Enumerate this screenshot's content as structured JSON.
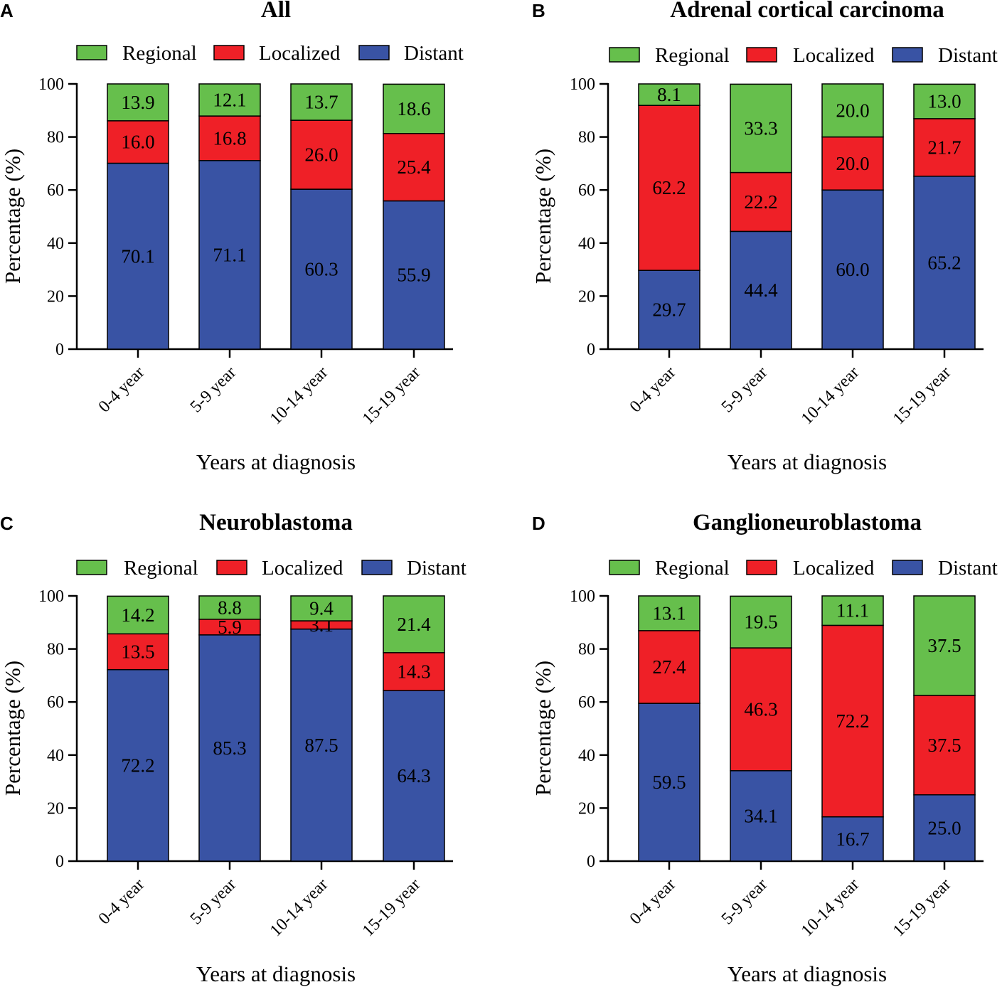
{
  "colors": {
    "Regional": "#66bf4c",
    "Localized": "#ef2027",
    "Distant": "#3953a4"
  },
  "chart_data": [
    {
      "panel": "A",
      "type": "bar",
      "stacked": true,
      "title": "All",
      "xlabel": "Years at diagnosis",
      "ylabel": "Percentage (%)",
      "ylim": [
        0,
        100
      ],
      "yticks": [
        "0",
        "20",
        "40",
        "60",
        "80",
        "100"
      ],
      "legend": [
        "Regional",
        "Localized",
        "Distant"
      ],
      "categories": [
        "0-4 year",
        "5-9 year",
        "10-14 year",
        "15-19 year"
      ],
      "series": [
        {
          "name": "Distant",
          "values": [
            70.1,
            71.1,
            60.3,
            55.9
          ],
          "labels": [
            "70.1",
            "71.1",
            "60.3",
            "55.9"
          ]
        },
        {
          "name": "Localized",
          "values": [
            16.0,
            16.8,
            26.0,
            25.4
          ],
          "labels": [
            "16.0",
            "16.8",
            "26.0",
            "25.4"
          ]
        },
        {
          "name": "Regional",
          "values": [
            13.9,
            12.1,
            13.7,
            18.6
          ],
          "labels": [
            "13.9",
            "12.1",
            "13.7",
            "18.6"
          ]
        }
      ]
    },
    {
      "panel": "B",
      "type": "bar",
      "stacked": true,
      "title": "Adrenal cortical carcinoma",
      "xlabel": "Years at diagnosis",
      "ylabel": "Percentage (%)",
      "ylim": [
        0,
        100
      ],
      "yticks": [
        "0",
        "20",
        "40",
        "60",
        "80",
        "100"
      ],
      "legend": [
        "Regional",
        "Localized",
        "Distant"
      ],
      "categories": [
        "0-4 year",
        "5-9 year",
        "10-14 year",
        "15-19 year"
      ],
      "series": [
        {
          "name": "Distant",
          "values": [
            29.7,
            44.4,
            60.0,
            65.2
          ],
          "labels": [
            "29.7",
            "44.4",
            "60.0",
            "65.2"
          ]
        },
        {
          "name": "Localized",
          "values": [
            62.2,
            22.2,
            20.0,
            21.7
          ],
          "labels": [
            "62.2",
            "22.2",
            "20.0",
            "21.7"
          ]
        },
        {
          "name": "Regional",
          "values": [
            8.1,
            33.3,
            20.0,
            13.0
          ],
          "labels": [
            "8.1",
            "33.3",
            "20.0",
            "13.0"
          ]
        }
      ]
    },
    {
      "panel": "C",
      "type": "bar",
      "stacked": true,
      "title": "Neuroblastoma",
      "xlabel": "Years at diagnosis",
      "ylabel": "Percentage (%)",
      "ylim": [
        0,
        100
      ],
      "yticks": [
        "0",
        "20",
        "40",
        "60",
        "80",
        "100"
      ],
      "legend": [
        "Regional",
        "Localized",
        "Distant"
      ],
      "categories": [
        "0-4 year",
        "5-9 year",
        "10-14 year",
        "15-19 year"
      ],
      "series": [
        {
          "name": "Distant",
          "values": [
            72.2,
            85.3,
            87.5,
            64.3
          ],
          "labels": [
            "72.2",
            "85.3",
            "87.5",
            "64.3"
          ]
        },
        {
          "name": "Localized",
          "values": [
            13.5,
            5.9,
            3.1,
            14.3
          ],
          "labels": [
            "13.5",
            "5.9",
            "3.1",
            "14.3"
          ]
        },
        {
          "name": "Regional",
          "values": [
            14.2,
            8.8,
            9.4,
            21.4
          ],
          "labels": [
            "14.2",
            "8.8",
            "9.4",
            "21.4"
          ]
        }
      ]
    },
    {
      "panel": "D",
      "type": "bar",
      "stacked": true,
      "title": "Ganglioneuroblastoma",
      "xlabel": "Years at diagnosis",
      "ylabel": "Percentage (%)",
      "ylim": [
        0,
        100
      ],
      "yticks": [
        "0",
        "20",
        "40",
        "60",
        "80",
        "100"
      ],
      "legend": [
        "Regional",
        "Localized",
        "Distant"
      ],
      "categories": [
        "0-4 year",
        "5-9 year",
        "10-14 year",
        "15-19 year"
      ],
      "series": [
        {
          "name": "Distant",
          "values": [
            59.5,
            34.1,
            16.7,
            25.0
          ],
          "labels": [
            "59.5",
            "34.1",
            "16.7",
            "25.0"
          ]
        },
        {
          "name": "Localized",
          "values": [
            27.4,
            46.3,
            72.2,
            37.5
          ],
          "labels": [
            "27.4",
            "46.3",
            "72.2",
            "37.5"
          ]
        },
        {
          "name": "Regional",
          "values": [
            13.1,
            19.5,
            11.1,
            37.5
          ],
          "labels": [
            "13.1",
            "19.5",
            "11.1",
            "37.5"
          ]
        }
      ]
    }
  ]
}
